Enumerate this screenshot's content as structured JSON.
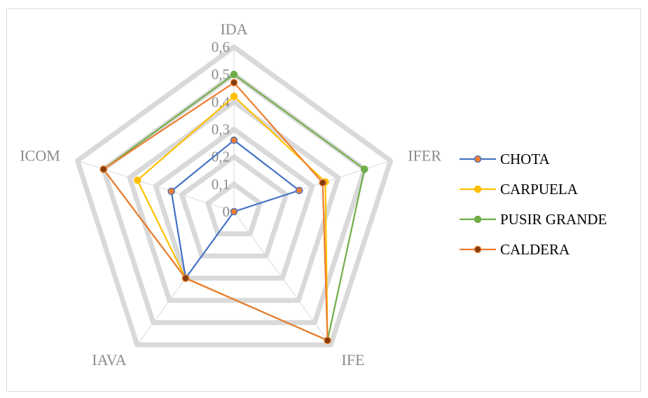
{
  "chart_data": {
    "type": "radar",
    "axes": [
      "IDA",
      "IFER",
      "IFE",
      "IAVA",
      "ICOM"
    ],
    "rlim": [
      0,
      0.6
    ],
    "ticks": [
      "0",
      "0,1",
      "0,2",
      "0,3",
      "0,4",
      "0,5",
      "0,6"
    ],
    "gridlines": true,
    "legend_position": "right",
    "series": [
      {
        "name": "CHOTA",
        "values": [
          0.26,
          0.25,
          0.0,
          0.3,
          0.24
        ],
        "line_color": "#4472c4",
        "marker_color": "#ed7d31"
      },
      {
        "name": "CARPUELA",
        "values": [
          0.42,
          0.35,
          0.58,
          0.3,
          0.37
        ],
        "line_color": "#ffc000",
        "marker_color": "#ffc000"
      },
      {
        "name": "PUSIR GRANDE",
        "values": [
          0.5,
          0.5,
          0.58,
          0.3,
          0.5
        ],
        "line_color": "#70ad47",
        "marker_color": "#70ad47"
      },
      {
        "name": "CALDERA",
        "values": [
          0.47,
          0.34,
          0.58,
          0.3,
          0.5
        ],
        "line_color": "#ed7d31",
        "marker_color": "#843c0c"
      }
    ]
  }
}
